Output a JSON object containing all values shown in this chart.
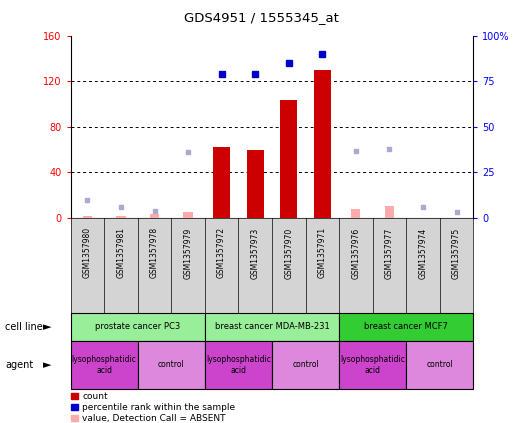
{
  "title": "GDS4951 / 1555345_at",
  "samples": [
    "GSM1357980",
    "GSM1357981",
    "GSM1357978",
    "GSM1357979",
    "GSM1357972",
    "GSM1357973",
    "GSM1357970",
    "GSM1357971",
    "GSM1357976",
    "GSM1357977",
    "GSM1357974",
    "GSM1357975"
  ],
  "count_values": [
    null,
    null,
    null,
    null,
    62,
    60,
    104,
    130,
    null,
    null,
    null,
    null
  ],
  "count_absent": [
    2,
    2,
    3,
    5,
    null,
    null,
    null,
    null,
    8,
    10,
    null,
    null
  ],
  "rank_values": [
    null,
    null,
    null,
    null,
    79,
    79,
    85,
    90,
    null,
    null,
    null,
    null
  ],
  "rank_absent": [
    10,
    6,
    4,
    36,
    null,
    null,
    null,
    null,
    37,
    38,
    6,
    3
  ],
  "ylim_left": [
    0,
    160
  ],
  "ylim_right": [
    0,
    100
  ],
  "yticks_left": [
    0,
    40,
    80,
    120,
    160
  ],
  "ytick_labels_left": [
    "0",
    "40",
    "80",
    "120",
    "160"
  ],
  "yticks_right": [
    0,
    25,
    50,
    75,
    100
  ],
  "ytick_labels_right": [
    "0",
    "25",
    "50",
    "75",
    "100%"
  ],
  "bar_color": "#cc0000",
  "rank_color": "#0000cc",
  "absent_count_color": "#ffaaaa",
  "absent_rank_color": "#aaaacc",
  "cell_line_groups": [
    {
      "label": "prostate cancer PC3",
      "start": 0,
      "end": 4,
      "color": "#99ee99"
    },
    {
      "label": "breast cancer MDA-MB-231",
      "start": 4,
      "end": 8,
      "color": "#99ee99"
    },
    {
      "label": "breast cancer MCF7",
      "start": 8,
      "end": 12,
      "color": "#33cc33"
    }
  ],
  "agent_groups": [
    {
      "label": "lysophosphatidic\nacid",
      "start": 0,
      "end": 2,
      "color": "#cc44cc"
    },
    {
      "label": "control",
      "start": 2,
      "end": 4,
      "color": "#dd88dd"
    },
    {
      "label": "lysophosphatidic\nacid",
      "start": 4,
      "end": 6,
      "color": "#cc44cc"
    },
    {
      "label": "control",
      "start": 6,
      "end": 8,
      "color": "#dd88dd"
    },
    {
      "label": "lysophosphatidic\nacid",
      "start": 8,
      "end": 10,
      "color": "#cc44cc"
    },
    {
      "label": "control",
      "start": 10,
      "end": 12,
      "color": "#dd88dd"
    }
  ],
  "legend_items": [
    {
      "label": "count",
      "color": "#cc0000"
    },
    {
      "label": "percentile rank within the sample",
      "color": "#0000cc"
    },
    {
      "label": "value, Detection Call = ABSENT",
      "color": "#ffaaaa"
    },
    {
      "label": "rank, Detection Call = ABSENT",
      "color": "#aaaacc"
    }
  ],
  "bg_color": "#ffffff",
  "tick_fontsize": 7,
  "bar_width": 0.5,
  "marker_size": 4
}
